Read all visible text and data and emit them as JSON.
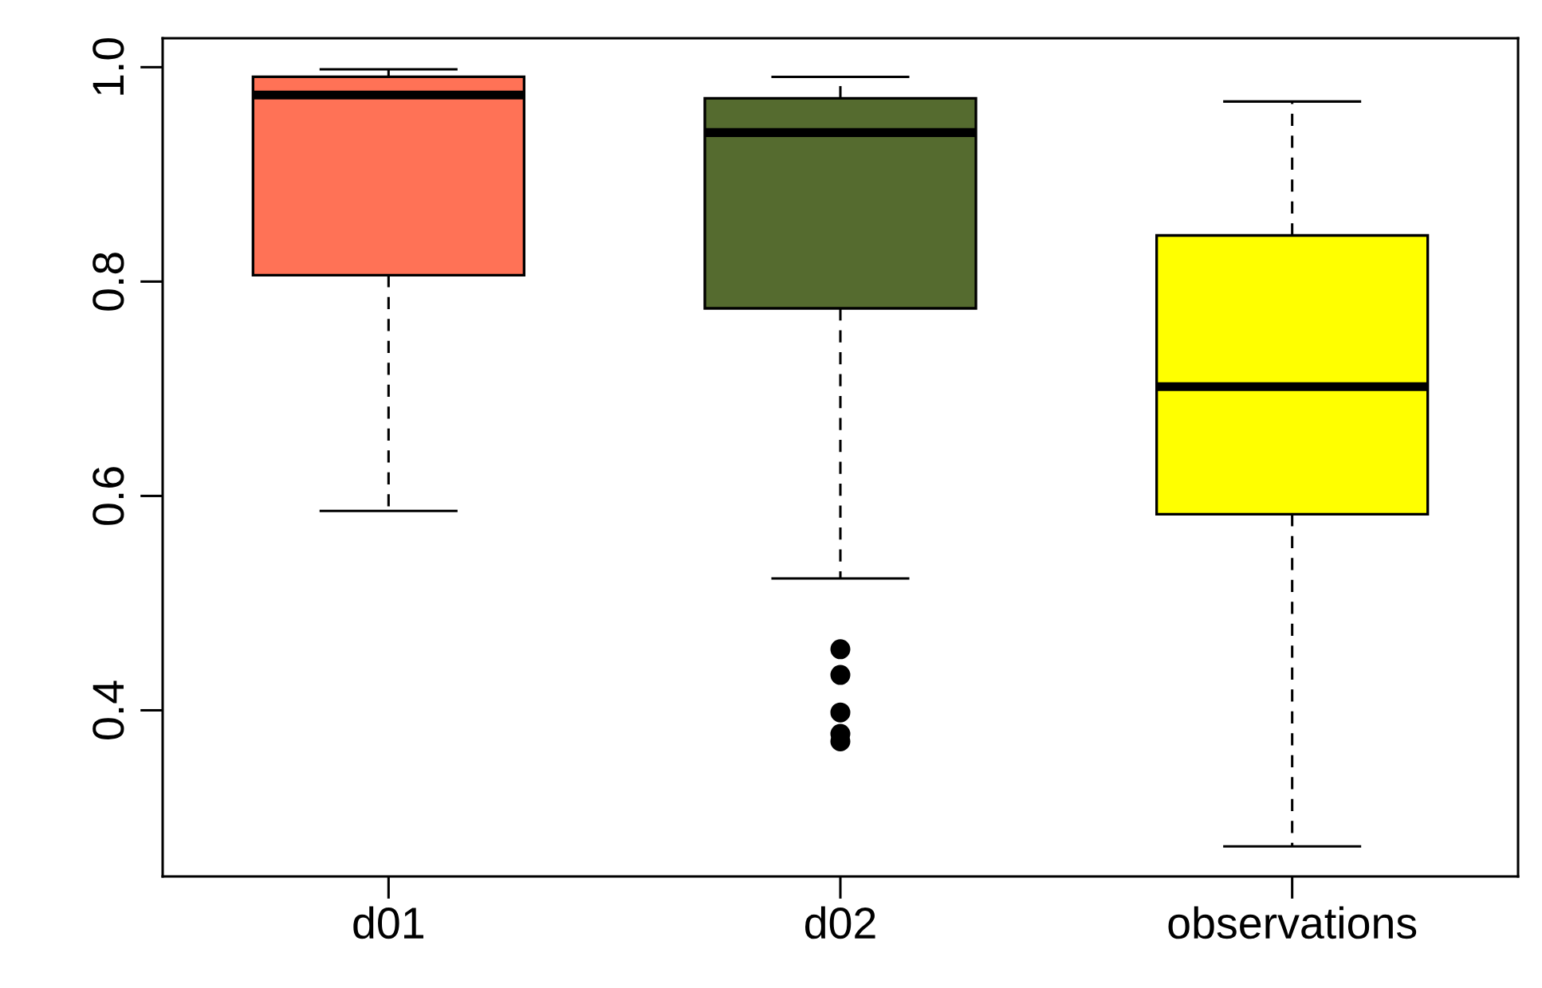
{
  "chart_data": {
    "type": "box",
    "categories": [
      "d01",
      "d02",
      "observations"
    ],
    "colors": [
      "#ff7256",
      "#556b2f",
      "#ffff00"
    ],
    "boxes": [
      {
        "low": 0.586,
        "q1": 0.806,
        "median": 0.974,
        "q3": 0.991,
        "high": 0.998
      },
      {
        "low": 0.523,
        "q1": 0.775,
        "median": 0.939,
        "q3": 0.971,
        "high": 0.991,
        "outliers": [
          0.457,
          0.433,
          0.398,
          0.378,
          0.371
        ]
      },
      {
        "low": 0.273,
        "q1": 0.583,
        "median": 0.702,
        "q3": 0.843,
        "high": 0.968
      }
    ],
    "ylim": [
      0.245,
      1.027
    ],
    "yticks": [
      {
        "value": 0.4,
        "label": "0.4"
      },
      {
        "value": 0.6,
        "label": "0.6"
      },
      {
        "value": 0.8,
        "label": "0.8"
      },
      {
        "value": 1.0,
        "label": "1.0"
      }
    ],
    "grid": false,
    "legend": false
  }
}
